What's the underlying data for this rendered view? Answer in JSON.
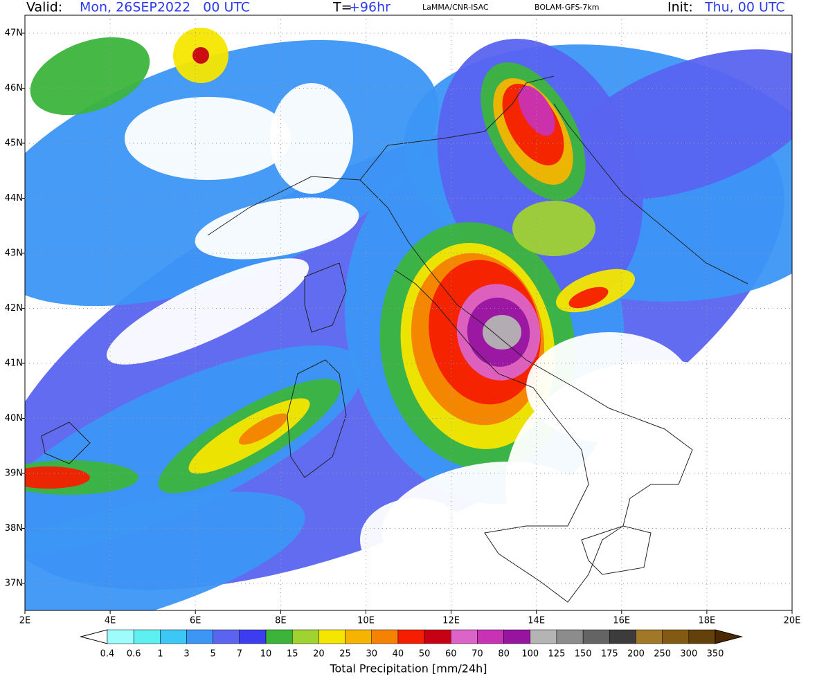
{
  "header": {
    "valid_label": "Valid:",
    "valid_value": "Mon, 26SEP2022   00 UTC",
    "lead_label": "T=",
    "lead_value": "+96hr",
    "source": "LaMMA/CNR-ISAC",
    "model": "BOLAM-GFS-7km",
    "init_label": "Init:",
    "init_value": "Thu, 00 UTC"
  },
  "map": {
    "lon_ticks": [
      "2E",
      "4E",
      "6E",
      "8E",
      "10E",
      "12E",
      "14E",
      "16E",
      "18E",
      "20E"
    ],
    "lat_ticks": [
      "47N",
      "46N",
      "45N",
      "44N",
      "43N",
      "42N",
      "41N",
      "40N",
      "39N",
      "38N",
      "37N"
    ]
  },
  "legend": {
    "title": "Total Precipitation [mm/24h]",
    "ticks": [
      0.4,
      0.6,
      1,
      3,
      5,
      7,
      10,
      15,
      20,
      25,
      30,
      40,
      50,
      60,
      70,
      80,
      100,
      125,
      150,
      175,
      200,
      250,
      300,
      350
    ],
    "colors": [
      "#ffffff",
      "#9ffcfc",
      "#5ef0f0",
      "#3cc8f5",
      "#3c96f5",
      "#5a64f0",
      "#3c3cf0",
      "#3cb43c",
      "#a0d232",
      "#f5e600",
      "#f5b400",
      "#f58200",
      "#f51e00",
      "#c80014",
      "#dc64c8",
      "#c832b4",
      "#9614a0",
      "#b4b4b4",
      "#8c8c8c",
      "#646464",
      "#3c3c3c",
      "#a07828",
      "#825a14",
      "#64400a",
      "#4b2800"
    ]
  }
}
